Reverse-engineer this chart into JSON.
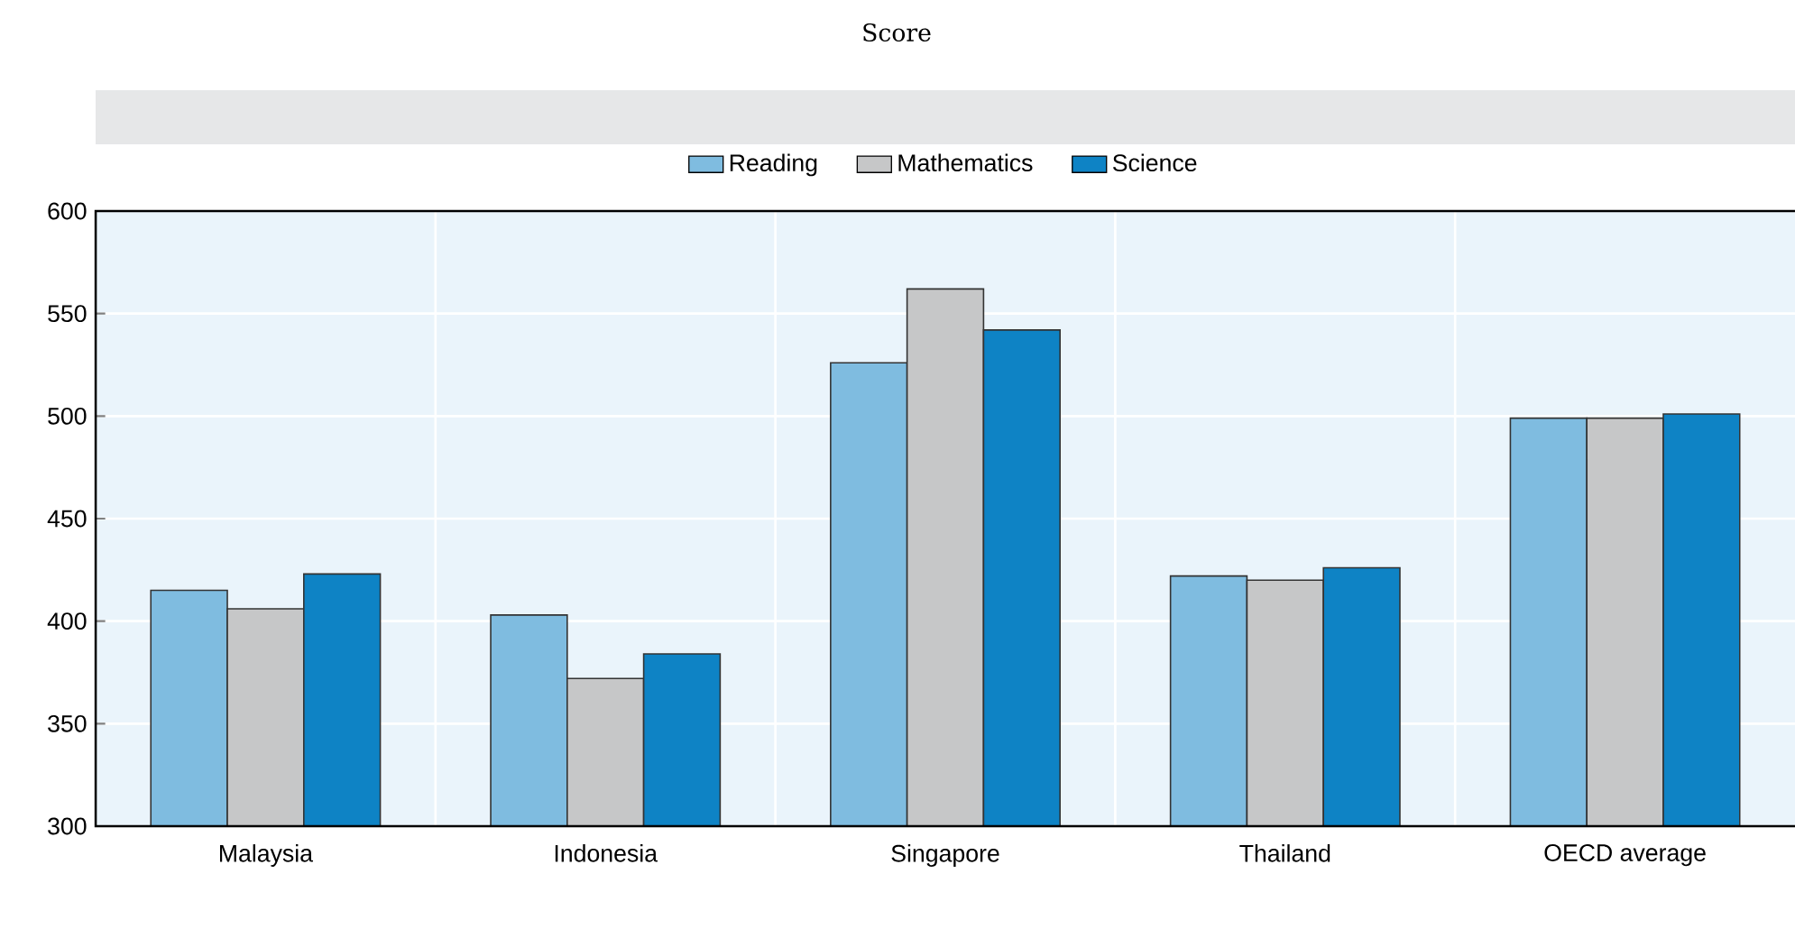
{
  "chart_data": {
    "type": "bar",
    "subtitle": "Score",
    "categories": [
      "Malaysia",
      "Indonesia",
      "Singapore",
      "Thailand",
      "OECD average"
    ],
    "series": [
      {
        "name": "Reading",
        "color": "#7fbce0",
        "values": [
          415,
          403,
          526,
          422,
          499
        ]
      },
      {
        "name": "Mathematics",
        "color": "#c6c7c8",
        "values": [
          406,
          372,
          562,
          420,
          499
        ]
      },
      {
        "name": "Science",
        "color": "#0e83c5",
        "values": [
          423,
          384,
          542,
          426,
          501
        ]
      }
    ],
    "ylim": [
      300,
      600
    ],
    "yticks": [
      300,
      350,
      400,
      450,
      500,
      550,
      600
    ],
    "grid": true,
    "legend": "top"
  }
}
